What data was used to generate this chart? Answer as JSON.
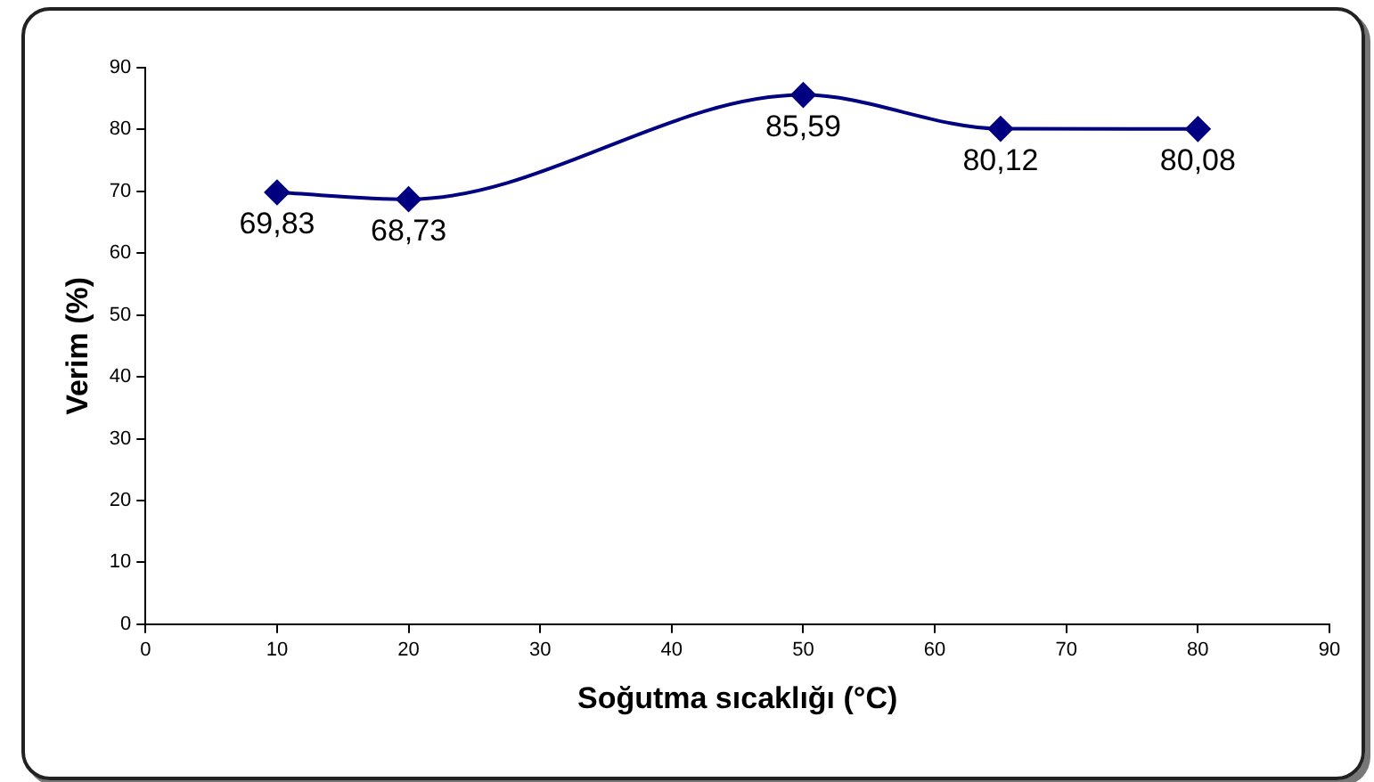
{
  "chart_data": {
    "type": "line",
    "xlabel": "Soğutma sıcaklığı (°C)",
    "ylabel": "Verim (%)",
    "x": [
      10,
      20,
      50,
      65,
      80
    ],
    "series": [
      {
        "color": "#000080",
        "values": [
          69.83,
          68.73,
          85.59,
          80.12,
          80.08
        ],
        "value_labels": [
          "69,83",
          "68,73",
          "85,59",
          "80,12",
          "80,08"
        ]
      }
    ],
    "xlim": [
      0,
      90
    ],
    "xticks": [
      0,
      10,
      20,
      30,
      40,
      50,
      60,
      70,
      80,
      90
    ],
    "ylim": [
      0,
      90
    ],
    "yticks": [
      0,
      10,
      20,
      30,
      40,
      50,
      60,
      70,
      80,
      90
    ],
    "grid": false,
    "legend": false,
    "marker": "diamond",
    "line_style": "solid"
  }
}
